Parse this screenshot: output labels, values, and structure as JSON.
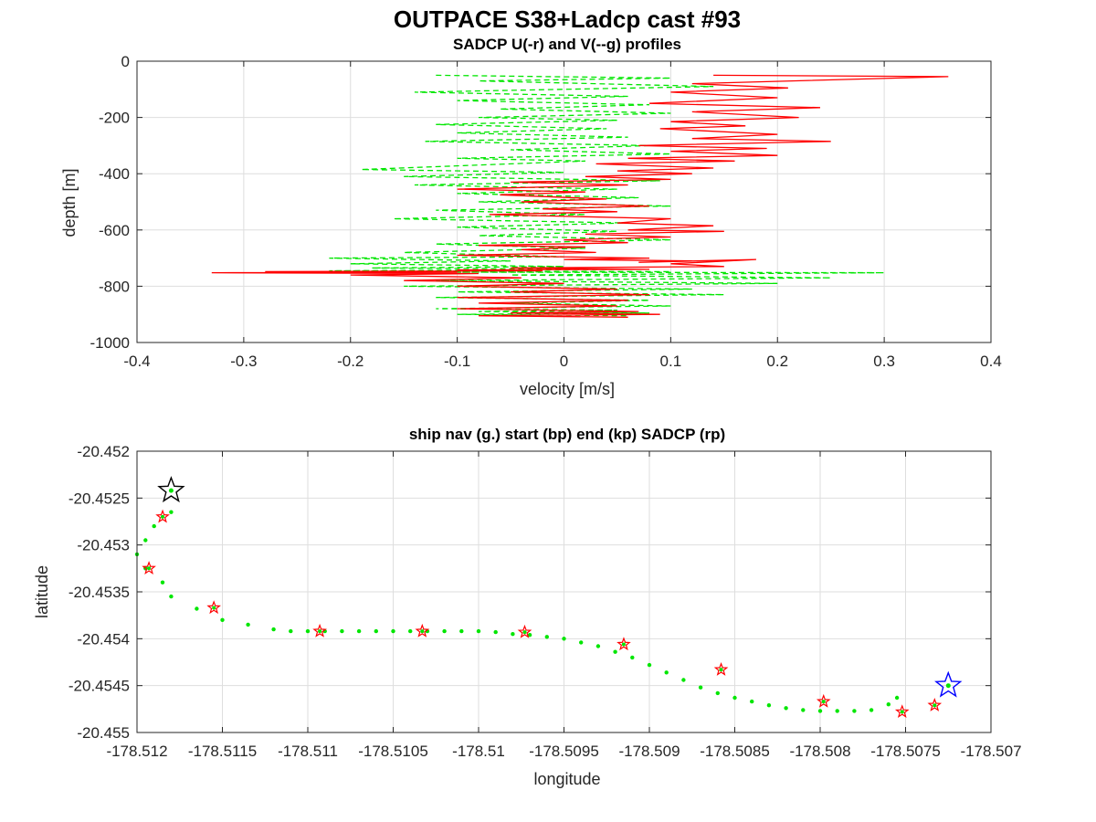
{
  "figure": {
    "title": "OUTPACE S38+Ladcp cast #93"
  },
  "chart_data": [
    {
      "type": "line",
      "title": "SADCP U(-r) and V(--g) profiles",
      "xlabel": "velocity [m/s]",
      "ylabel": "depth [m]",
      "xlim": [
        -0.4,
        0.4
      ],
      "ylim": [
        -1000,
        0
      ],
      "xticks": [
        -0.4,
        -0.3,
        -0.2,
        -0.1,
        0,
        0.1,
        0.2,
        0.3,
        0.4
      ],
      "yticks": [
        0,
        -200,
        -400,
        -600,
        -800,
        -1000
      ],
      "grid": true,
      "colors": {
        "u": "#ff0000",
        "v": "#00e600"
      },
      "series": [
        {
          "line_style": "solid",
          "x": [
            0.14,
            0.36,
            0.12,
            0.21,
            0.1,
            0.2,
            0.08,
            0.24,
            0.12,
            0.22,
            0.1,
            0.17,
            0.09,
            0.2,
            0.12,
            0.25,
            0.07,
            0.19,
            0.1,
            0.2,
            0.06,
            0.16,
            0.03,
            0.14,
            0.05,
            0.12,
            0.02,
            0.1,
            -0.05,
            0.06,
            -0.1,
            0.02,
            -0.06,
            0.04,
            -0.04,
            0.08,
            -0.02,
            0.05,
            -0.07,
            0.1,
            0.05,
            0.14,
            0.06,
            0.15,
            0.02,
            0.1,
            0.0,
            0.06,
            -0.08,
            0.02,
            -0.04,
            0.03,
            -0.1,
            0.08,
            0.0,
            0.12,
            0.07,
            0.18,
            0.1,
            0.15,
            -0.05,
            0.08,
            -0.1,
            -0.02,
            -0.28,
            -0.1,
            -0.33,
            -0.08,
            -0.2,
            -0.04,
            -0.15,
            0.0,
            -0.1,
            0.05,
            -0.05,
            0.08,
            -0.1,
            0.06,
            -0.08,
            0.05,
            -0.1,
            0.07,
            -0.05,
            0.09,
            -0.08,
            0.06
          ],
          "y": [
            -50,
            -55,
            -80,
            -95,
            -110,
            -130,
            -150,
            -165,
            -180,
            -200,
            -215,
            -230,
            -240,
            -260,
            -275,
            -285,
            -300,
            -310,
            -320,
            -335,
            -345,
            -355,
            -365,
            -380,
            -390,
            -400,
            -410,
            -420,
            -430,
            -440,
            -455,
            -465,
            -475,
            -490,
            -500,
            -515,
            -525,
            -535,
            -545,
            -560,
            -575,
            -585,
            -600,
            -605,
            -615,
            -625,
            -635,
            -645,
            -655,
            -660,
            -670,
            -680,
            -690,
            -700,
            -705,
            -710,
            -715,
            -705,
            -720,
            -730,
            -735,
            -740,
            -742,
            -745,
            -748,
            -750,
            -752,
            -755,
            -760,
            -770,
            -780,
            -790,
            -800,
            -810,
            -820,
            -830,
            -840,
            -850,
            -860,
            -870,
            -880,
            -890,
            -895,
            -900,
            -905,
            -910
          ]
        },
        {
          "line_style": "dashed",
          "x": [
            -0.12,
            0.1,
            -0.08,
            0.14,
            -0.14,
            0.06,
            -0.1,
            0.08,
            -0.06,
            0.1,
            -0.08,
            0.05,
            -0.12,
            0.04,
            -0.1,
            0.06,
            -0.13,
            0.08,
            -0.05,
            0.1,
            -0.1,
            0.02,
            -0.19,
            0.0,
            -0.15,
            0.09,
            -0.14,
            0.05,
            -0.1,
            0.07,
            -0.08,
            0.1,
            -0.12,
            0.02,
            -0.16,
            0.06,
            -0.1,
            0.05,
            -0.08,
            0.1,
            -0.12,
            0.02,
            -0.15,
            0.0,
            -0.22,
            -0.05,
            -0.2,
            0.0,
            -0.18,
            0.05,
            -0.22,
            0.1,
            -0.1,
            0.3,
            -0.05,
            0.25,
            -0.12,
            0.2,
            -0.15,
            0.12,
            -0.1,
            0.15,
            -0.12,
            0.08,
            -0.05,
            0.1,
            -0.12,
            0.05,
            -0.08,
            0.08,
            -0.1,
            0.06
          ],
          "y": [
            -50,
            -60,
            -70,
            -90,
            -110,
            -125,
            -140,
            -155,
            -170,
            -185,
            -200,
            -210,
            -225,
            -240,
            -255,
            -270,
            -285,
            -300,
            -315,
            -330,
            -345,
            -355,
            -385,
            -395,
            -410,
            -425,
            -440,
            -455,
            -470,
            -485,
            -500,
            -515,
            -530,
            -545,
            -560,
            -575,
            -590,
            -605,
            -620,
            -635,
            -650,
            -665,
            -680,
            -695,
            -700,
            -710,
            -720,
            -730,
            -735,
            -740,
            -745,
            -748,
            -750,
            -752,
            -760,
            -770,
            -780,
            -790,
            -800,
            -810,
            -820,
            -830,
            -840,
            -850,
            -860,
            -870,
            -880,
            -885,
            -890,
            -895,
            -900,
            -905
          ]
        }
      ]
    },
    {
      "type": "scatter",
      "title": "ship nav (g.) start (bp) end (kp) SADCP (rp)",
      "xlabel": "longitude",
      "ylabel": "latitude",
      "xlim": [
        -178.512,
        -178.507
      ],
      "ylim": [
        -20.455,
        -20.452
      ],
      "xticks": [
        "-178.512",
        "-178.5115",
        "-178.511",
        "-178.5105",
        "-178.51",
        "-178.5095",
        "-178.509",
        "-178.5085",
        "-178.508",
        "-178.5075",
        "-178.507"
      ],
      "yticks": [
        "-20.452",
        "-20.4525",
        "-20.453",
        "-20.4535",
        "-20.454",
        "-20.4545",
        "-20.455"
      ],
      "grid": true,
      "colors": {
        "nav": "#00e600",
        "sadcp": "#ff0000",
        "start": "#0000ff",
        "end": "#000000"
      },
      "nav_track": {
        "lon": [
          -178.5118,
          -178.5119,
          -178.51195,
          -178.512,
          -178.51195,
          -178.51185,
          -178.5118,
          -178.51165,
          -178.5115,
          -178.51135,
          -178.5112,
          -178.5111,
          -178.511,
          -178.5109,
          -178.5108,
          -178.5107,
          -178.5106,
          -178.5105,
          -178.5104,
          -178.5103,
          -178.5102,
          -178.5101,
          -178.51,
          -178.5099,
          -178.5098,
          -178.5097,
          -178.5096,
          -178.5095,
          -178.5094,
          -178.5093,
          -178.5092,
          -178.5091,
          -178.509,
          -178.5089,
          -178.5088,
          -178.5087,
          -178.5086,
          -178.5085,
          -178.5084,
          -178.5083,
          -178.5082,
          -178.5081,
          -178.508,
          -178.5079,
          -178.5078,
          -178.5077,
          -178.5076,
          -178.50755
        ],
        "lat": [
          -20.45265,
          -20.4528,
          -20.45295,
          -20.4531,
          -20.45325,
          -20.4534,
          -20.45355,
          -20.45368,
          -20.4538,
          -20.45385,
          -20.4539,
          -20.45392,
          -20.45392,
          -20.45392,
          -20.45392,
          -20.45392,
          -20.45392,
          -20.45392,
          -20.45392,
          -20.45392,
          -20.45392,
          -20.45392,
          -20.45392,
          -20.45393,
          -20.45395,
          -20.45396,
          -20.45398,
          -20.454,
          -20.45404,
          -20.45408,
          -20.45414,
          -20.4542,
          -20.45428,
          -20.45436,
          -20.45444,
          -20.45452,
          -20.45458,
          -20.45463,
          -20.45467,
          -20.45471,
          -20.45474,
          -20.45476,
          -20.45477,
          -20.45477,
          -20.45477,
          -20.45476,
          -20.4547,
          -20.45463
        ]
      },
      "sadcp_points": {
        "lon": [
          -178.51185,
          -178.51193,
          -178.51155,
          -178.51093,
          -178.51033,
          -178.50973,
          -178.50915,
          -178.50858,
          -178.50798,
          -178.50752,
          -178.50733
        ],
        "lat": [
          -20.4527,
          -20.45325,
          -20.45367,
          -20.45392,
          -20.45392,
          -20.45393,
          -20.45406,
          -20.45433,
          -20.45467,
          -20.45478,
          -20.45471
        ]
      },
      "start_point": {
        "lon": -178.50725,
        "lat": -20.4545
      },
      "end_point": {
        "lon": -178.5118,
        "lat": -20.45242
      }
    }
  ]
}
